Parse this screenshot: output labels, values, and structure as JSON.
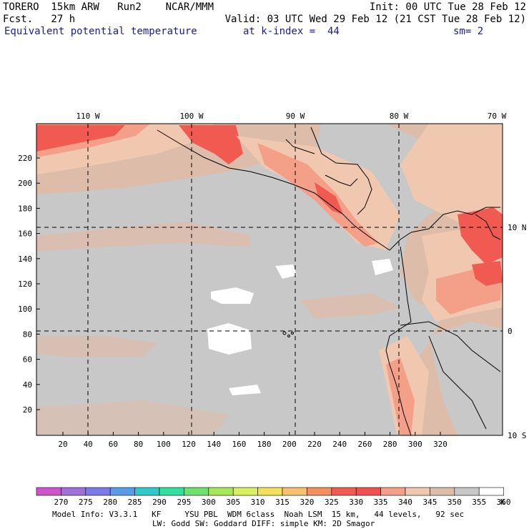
{
  "header": {
    "model": "TORERO  15km ARW   Run2    NCAR/MMM",
    "init": "Init: 00 UTC Tue 28 Feb 12",
    "fcst": "Fcst.   27 h",
    "valid": "Valid: 03 UTC Wed 29 Feb 12 (21 CST Tue 28 Feb 12)",
    "field": "Equivalent potential temperature",
    "level": "at k-index =  44",
    "smooth": "sm= 2"
  },
  "map": {
    "top_lon_labels": [
      "110 W",
      "100 W",
      "90 W",
      "80 W",
      "70 W"
    ],
    "right_lat_labels": [
      "10 N",
      "0",
      "10 S"
    ],
    "left_ticks": [
      "20",
      "40",
      "60",
      "80",
      "100",
      "120",
      "140",
      "160",
      "180",
      "200",
      "220"
    ],
    "bottom_ticks": [
      "20",
      "40",
      "60",
      "80",
      "100",
      "120",
      "140",
      "160",
      "180",
      "200",
      "220",
      "240",
      "260",
      "280",
      "300",
      "320"
    ]
  },
  "colorbar": {
    "labels": [
      "270",
      "275",
      "280",
      "285",
      "290",
      "295",
      "300",
      "305",
      "310",
      "315",
      "320",
      "325",
      "330",
      "335",
      "340",
      "345",
      "350",
      "355",
      "360"
    ],
    "unit": "K",
    "colors": [
      "#cc55cc",
      "#a070d8",
      "#7a7ae8",
      "#5a9ae8",
      "#30c8c8",
      "#30e0a0",
      "#70e070",
      "#a8e858",
      "#d8f060",
      "#f4e058",
      "#f6c070",
      "#f49060",
      "#f05a50",
      "#f05050",
      "#f4a088",
      "#f0c8b0",
      "#ddbcaa",
      "#c8c8c8",
      "#ffffff"
    ]
  },
  "footer": {
    "line1": "Model Info: V3.3.1   KF     YSU PBL  WDM 6class  Noah LSM  15 km,   44 levels,   92 sec",
    "line2": "LW: Godd SW: Goddard DIFF: simple KM: 2D Smagor"
  }
}
